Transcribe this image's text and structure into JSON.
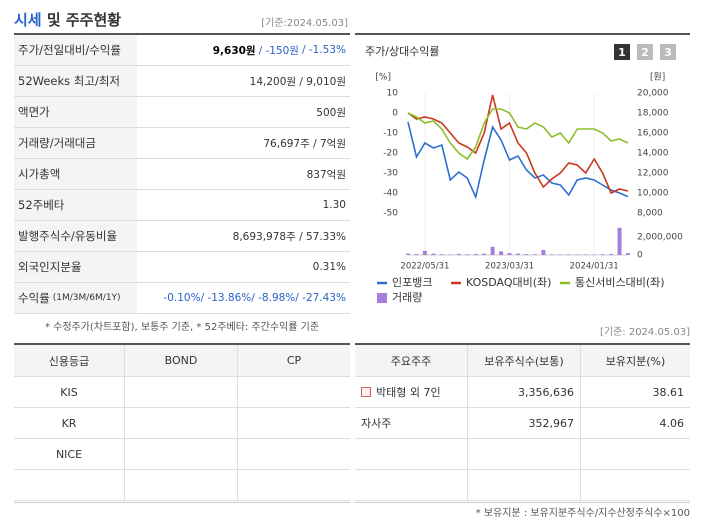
{
  "summary": {
    "title_main": "시세",
    "title_rest": "및 주주현황",
    "date": "[기준:2024.05.03]",
    "rows": [
      {
        "label": "주가/전일대비/수익률",
        "values": [
          "9,630원",
          "/ -150원",
          "/ -1.53%"
        ]
      },
      {
        "label": "52Weeks 최고/최저",
        "values": [
          "14,200원 / 9,010원"
        ]
      },
      {
        "label": "액면가",
        "values": [
          "500원"
        ]
      },
      {
        "label": "거래량/거래대금",
        "values": [
          "76,697주 / 7억원"
        ]
      },
      {
        "label": "시가총액",
        "values": [
          "837억원"
        ]
      },
      {
        "label": "52주베타",
        "values": [
          "1.30"
        ]
      },
      {
        "label": "발행주식수/유동비율",
        "values": [
          "8,693,978주 / 57.33%"
        ]
      },
      {
        "label": "외국인지분율",
        "values": [
          "0.31%"
        ]
      },
      {
        "label": "수익률",
        "sublabel": "(1M/3M/6M/1Y)",
        "values": [
          "-0.10%/ -13.86%/ -8.98%/ -27.43%"
        ]
      }
    ],
    "note": "* 수정주가(차트포함), 보통주 기준, * 52주베타: 주간수익률 기준"
  },
  "chart_data": {
    "type": "line",
    "title": "주가/상대수익률",
    "buttons": [
      "1",
      "2",
      "3"
    ],
    "y_unit": "[%]",
    "y2_unit": "[원]",
    "categories": [
      null,
      null,
      "2022/05/31",
      null,
      null,
      null,
      null,
      null,
      null,
      null,
      null,
      null,
      "2023/03/31",
      null,
      null,
      null,
      null,
      null,
      null,
      null,
      null,
      null,
      "2024/01/31",
      null,
      null,
      null,
      null
    ],
    "ylim": [
      -50,
      10
    ],
    "yticks": [
      10,
      0,
      -10,
      -20,
      -30,
      -40,
      -50
    ],
    "y2lim": [
      8000,
      20000
    ],
    "y2ticks": [
      {
        "value": 20000,
        "label": "20,000"
      },
      {
        "value": 18000,
        "label": "18,000"
      },
      {
        "value": 16000,
        "label": "16,000"
      },
      {
        "value": 14000,
        "label": "14,000"
      },
      {
        "value": 12000,
        "label": "12,000"
      },
      {
        "value": 10000,
        "label": "10,000"
      },
      {
        "value": 8000,
        "label": "8,000"
      }
    ],
    "volume_ylim": [
      0,
      3200000
    ],
    "volume_yticks": [
      {
        "value": 2000000,
        "label": "2,000,000"
      },
      0
    ],
    "series": [
      {
        "name": "인포뱅크",
        "color": "#2e6fd1",
        "axis": "y2",
        "values": [
          17100,
          13600,
          15000,
          14500,
          14800,
          11300,
          12100,
          11500,
          9600,
          13300,
          16600,
          15300,
          13300,
          13700,
          12300,
          11500,
          11800,
          11000,
          10800,
          9800,
          11300,
          11500,
          11300,
          10800,
          10300,
          10000,
          9630
        ]
      },
      {
        "name": "KOSDAQ대비(좌)",
        "color": "#c8381e",
        "values": [
          0,
          -3,
          -2,
          -3,
          -5,
          -10,
          -15,
          -17,
          -20,
          -10,
          9,
          -8,
          -5,
          -15,
          -20,
          -30,
          -37,
          -33,
          -30,
          -25,
          -26,
          -30,
          -23,
          -30,
          -40,
          -38,
          -39
        ]
      },
      {
        "name": "통신서비스대비(좌)",
        "color": "#8cbf2a",
        "values": [
          0,
          -2,
          -5,
          -4,
          -8,
          -15,
          -20,
          -23,
          -17,
          -5,
          2,
          2,
          0,
          -7,
          -8,
          -5,
          -7,
          -12,
          -10,
          -15,
          -8,
          -8,
          -8,
          -10,
          -14,
          -13,
          -15
        ]
      },
      {
        "name": "거래량",
        "color": "#a47fdc",
        "axis": "volume",
        "type": "bar",
        "values": [
          150000,
          100000,
          450000,
          150000,
          80000,
          60000,
          120000,
          80000,
          100000,
          150000,
          900000,
          400000,
          200000,
          150000,
          100000,
          80000,
          550000,
          60000,
          50000,
          60000,
          50000,
          60000,
          50000,
          80000,
          100000,
          3000000,
          200000
        ]
      }
    ]
  },
  "credit": {
    "header": [
      "신용등급",
      "BOND",
      "CP"
    ],
    "rows": [
      [
        "KIS",
        "",
        ""
      ],
      [
        "KR",
        "",
        ""
      ],
      [
        "NICE",
        "",
        ""
      ],
      [
        "",
        "",
        ""
      ]
    ]
  },
  "holders": {
    "date": "[기준: 2024.05.03]",
    "header": [
      "주요주주",
      "보유주식수(보통)",
      "보유지분(%)"
    ],
    "rows": [
      [
        "박태형 외 7인",
        "3,356,636",
        "38.61"
      ],
      [
        "자사주",
        "352,967",
        "4.06"
      ],
      [
        "",
        "",
        ""
      ],
      [
        "",
        "",
        ""
      ]
    ],
    "note": "* 보유지분 : 보유지분주식수/지수산정주식수×100"
  }
}
